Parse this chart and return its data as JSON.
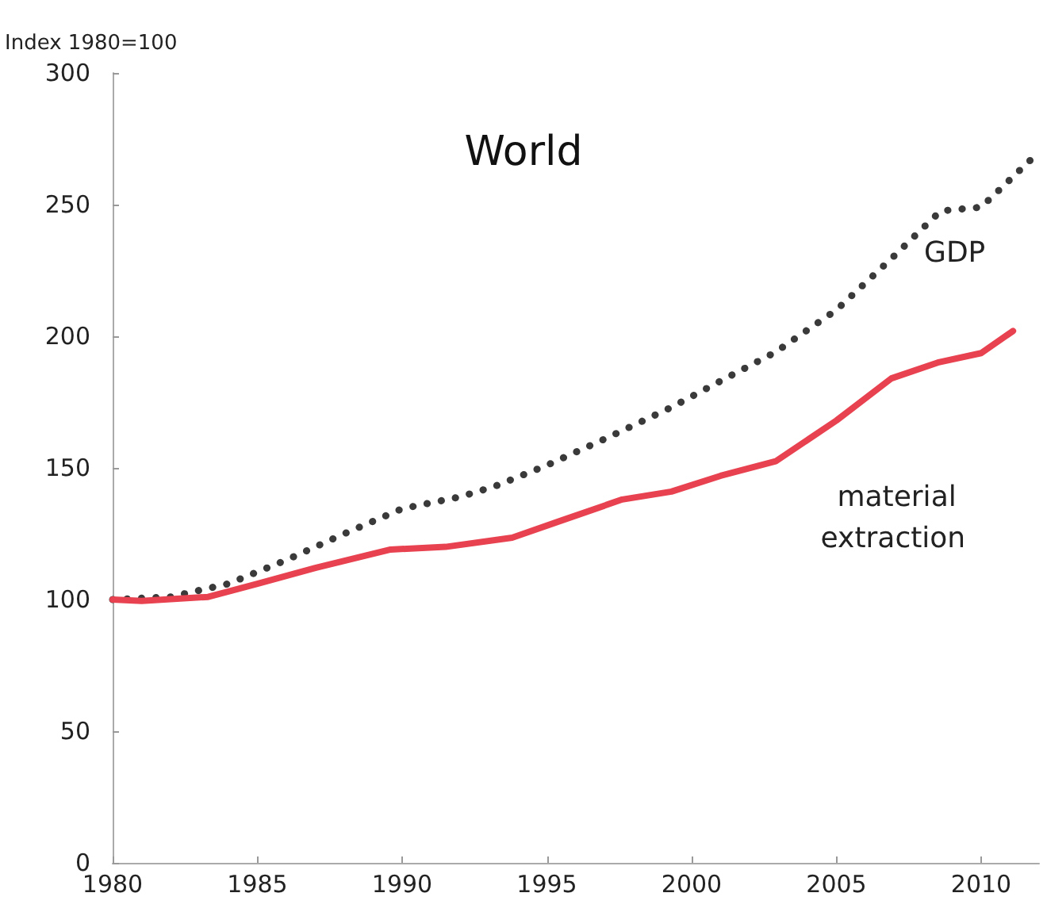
{
  "chart_data": {
    "type": "line",
    "title": "World",
    "ylabel": "Index 1980=100",
    "xlim": [
      1980,
      2012
    ],
    "xticks": [
      1980,
      1985,
      1990,
      1995,
      2000,
      2005,
      2010
    ],
    "ylim": [
      0,
      300
    ],
    "yticks": [
      0,
      50,
      100,
      150,
      200,
      250,
      300
    ],
    "grid": false,
    "legend": false,
    "marker": "none",
    "series": [
      {
        "name": "GDP",
        "color": "#3a3a3a",
        "line_style": "dotted",
        "x": [
          1980,
          1982,
          1984,
          1986,
          1988,
          1990,
          1992,
          1993.2,
          1995,
          1997,
          1999.3,
          2001,
          2002.9,
          2005,
          2006.9,
          2008.6,
          2010,
          2011.9
        ],
        "values": [
          100,
          101,
          106,
          115,
          125,
          134.5,
          139,
          143,
          151,
          161,
          173,
          183,
          194,
          210,
          229.5,
          247.6,
          249,
          269
        ]
      },
      {
        "name": "material extraction",
        "color": "#e8414f",
        "line_style": "solid",
        "x": [
          1980,
          1981,
          1983.3,
          1985,
          1987,
          1989.6,
          1991.5,
          1993.8,
          1995.5,
          1997.6,
          1999.3,
          2001,
          2002.9,
          2005,
          2006.9,
          2008.5,
          2010,
          2011.1
        ],
        "values": [
          100,
          99.5,
          101,
          106,
          112,
          119,
          120,
          123.5,
          130,
          138,
          141,
          147,
          152.5,
          168,
          184,
          190,
          193.6,
          202
        ]
      }
    ]
  }
}
